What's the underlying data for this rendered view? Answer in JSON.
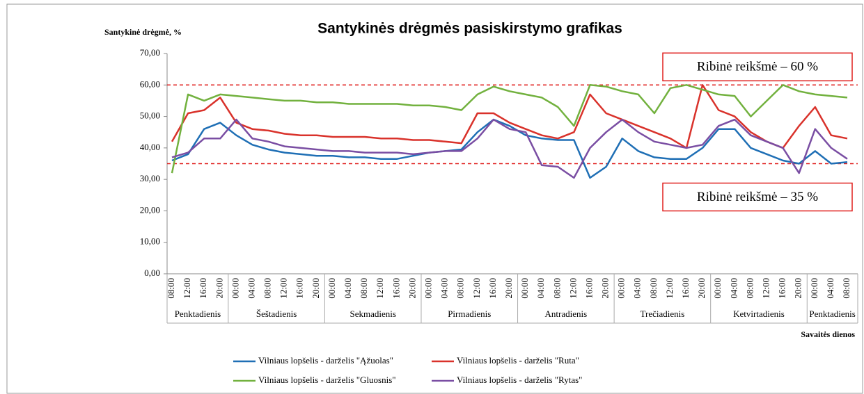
{
  "chart_data": {
    "type": "line",
    "title": "Santykinės drėgmės pasiskirstymo grafikas",
    "y_label": "Santykinė drėgmė, %",
    "x_label": "Savaitės dienos",
    "categories": [
      "08:00",
      "12:00",
      "16:00",
      "20:00",
      "00:00",
      "04:00",
      "08:00",
      "12:00",
      "16:00",
      "20:00",
      "00:00",
      "04:00",
      "08:00",
      "12:00",
      "16:00",
      "20:00",
      "00:00",
      "04:00",
      "08:00",
      "12:00",
      "16:00",
      "20:00",
      "00:00",
      "04:00",
      "08:00",
      "12:00",
      "16:00",
      "20:00",
      "00:00",
      "04:00",
      "08:00",
      "12:00",
      "16:00",
      "20:00",
      "00:00",
      "04:00",
      "08:00",
      "12:00",
      "16:00",
      "20:00",
      "00:00",
      "04:00",
      "08:00"
    ],
    "day_labels": [
      "Penktadienis",
      "Šeštadienis",
      "Sekmadienis",
      "Pirmadienis",
      "Antradienis",
      "Trečiadienis",
      "Ketvirtadienis",
      "Penktadienis"
    ],
    "series": [
      {
        "name": "Vilniaus lopšelis - darželis \"Ąžuolas\"",
        "color": "#1f6fb5",
        "values": [
          36,
          38,
          46,
          48,
          44,
          41,
          39.5,
          38.5,
          38,
          37.5,
          37.5,
          37,
          37,
          36.5,
          36.5,
          37.5,
          38.5,
          39,
          39.5,
          45,
          49,
          47,
          44,
          43,
          42.5,
          42.5,
          30.5,
          34,
          43,
          39,
          37,
          36.5,
          36.5,
          40,
          46,
          46,
          40,
          38,
          36,
          35,
          39,
          35,
          35.5
        ]
      },
      {
        "name": "Vilniaus lopšelis - darželis \"Ruta\"",
        "color": "#d9322b",
        "values": [
          42,
          51,
          52,
          56,
          48,
          46,
          45.5,
          44.5,
          44,
          44,
          43.5,
          43.5,
          43.5,
          43,
          43,
          42.5,
          42.5,
          42,
          41.5,
          51,
          51,
          48,
          46,
          44,
          43,
          45,
          57,
          51,
          49,
          47,
          45,
          43,
          40,
          60,
          52,
          50,
          45,
          42,
          40,
          47,
          53,
          44,
          43
        ]
      },
      {
        "name": "Vilniaus lopšelis - darželis \"Gluosnis\"",
        "color": "#72b13e",
        "values": [
          32,
          57,
          55,
          57,
          56.5,
          56,
          55.5,
          55,
          55,
          54.5,
          54.5,
          54,
          54,
          54,
          54,
          53.5,
          53.5,
          53,
          52,
          57,
          59.5,
          58,
          57,
          56,
          53,
          47,
          60,
          59.5,
          58,
          57,
          51,
          59,
          60,
          58.5,
          57,
          56.5,
          50,
          55,
          60,
          58,
          57,
          56.5,
          56
        ]
      },
      {
        "name": "Vilniaus lopšelis - darželis \"Rytas\"",
        "color": "#7a4ea3",
        "values": [
          37,
          38.5,
          43,
          43,
          49,
          43,
          42,
          40.5,
          40,
          39.5,
          39,
          39,
          38.5,
          38.5,
          38.5,
          38,
          38.5,
          39,
          39,
          43,
          49,
          46,
          45,
          34.5,
          34,
          30.5,
          40,
          45,
          49,
          45,
          42,
          41,
          40,
          41,
          47,
          49,
          44,
          42,
          40,
          32,
          46,
          40,
          36.5
        ]
      }
    ],
    "reference_lines": [
      {
        "value": 60,
        "label": "Ribinė reikšmė – 60 %",
        "color": "#e0201f"
      },
      {
        "value": 35,
        "label": "Ribinė reikšmė – 35 %",
        "color": "#e0201f"
      }
    ],
    "ylim": [
      0,
      70
    ],
    "yticks": [
      {
        "value": 0,
        "label": "0,00"
      },
      {
        "value": 10,
        "label": "10,00"
      },
      {
        "value": 20,
        "label": "20,00"
      },
      {
        "value": 30,
        "label": "30,00"
      },
      {
        "value": 40,
        "label": "40,00"
      },
      {
        "value": 50,
        "label": "50,00"
      },
      {
        "value": 60,
        "label": "60,00"
      },
      {
        "value": 70,
        "label": "70,00"
      }
    ],
    "grid": false
  }
}
